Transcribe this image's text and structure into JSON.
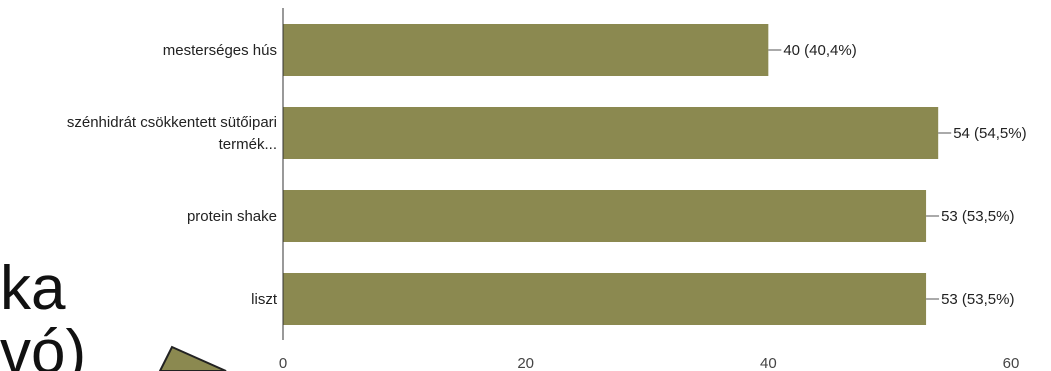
{
  "colors": {
    "bar": "#8b8950",
    "axis": "#333333",
    "leader": "#555555",
    "arrow_fill": "#8b8950",
    "arrow_stroke": "#222222"
  },
  "slide_fragments": [
    "ka",
    "vó)"
  ],
  "chart_data": {
    "type": "bar",
    "orientation": "horizontal",
    "categories": [
      [
        "mesterséges hús"
      ],
      [
        "szénhidrát csökkentett sütőipari",
        "termék..."
      ],
      [
        "protein shake"
      ],
      [
        "liszt"
      ]
    ],
    "values": [
      40,
      54,
      53,
      53
    ],
    "data_labels": [
      "40 (40,4%)",
      "54 (54,5%)",
      "53 (53,5%)",
      "53 (53,5%)"
    ],
    "xlim": [
      0,
      60
    ],
    "xticks": [
      "0",
      "20",
      "40",
      "60"
    ],
    "grid": false,
    "legend": "none"
  }
}
